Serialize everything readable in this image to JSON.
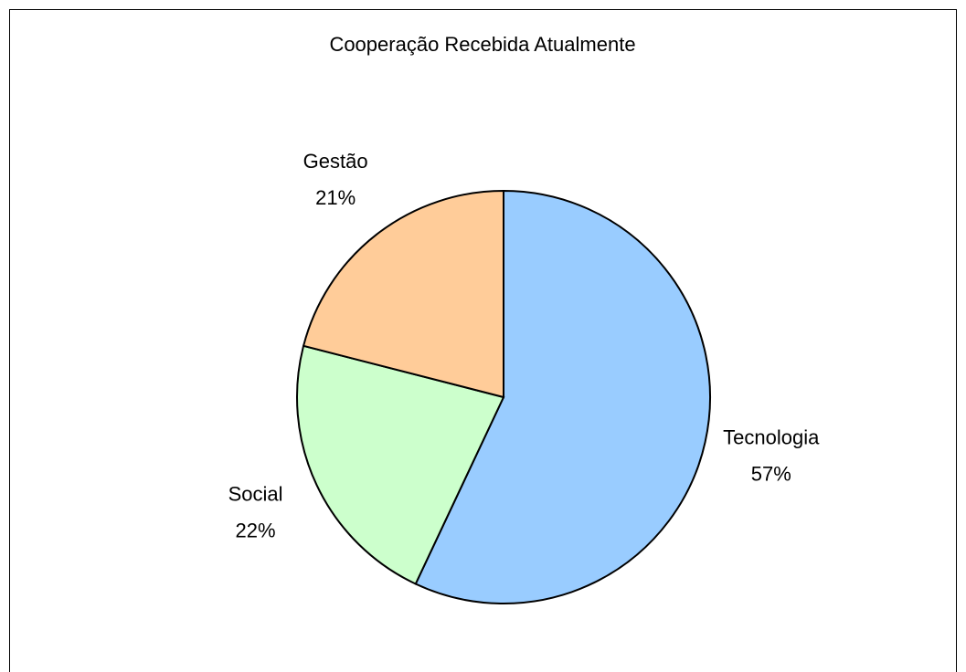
{
  "chart_data": {
    "type": "pie",
    "title": "Cooperação Recebida Atualmente",
    "categories": [
      "Tecnologia",
      "Social",
      "Gestão"
    ],
    "values": [
      57,
      22,
      21
    ],
    "value_labels": [
      "57%",
      "22%",
      "21%"
    ],
    "colors": [
      "#99ccff",
      "#ccffcc",
      "#ffcc99"
    ]
  }
}
